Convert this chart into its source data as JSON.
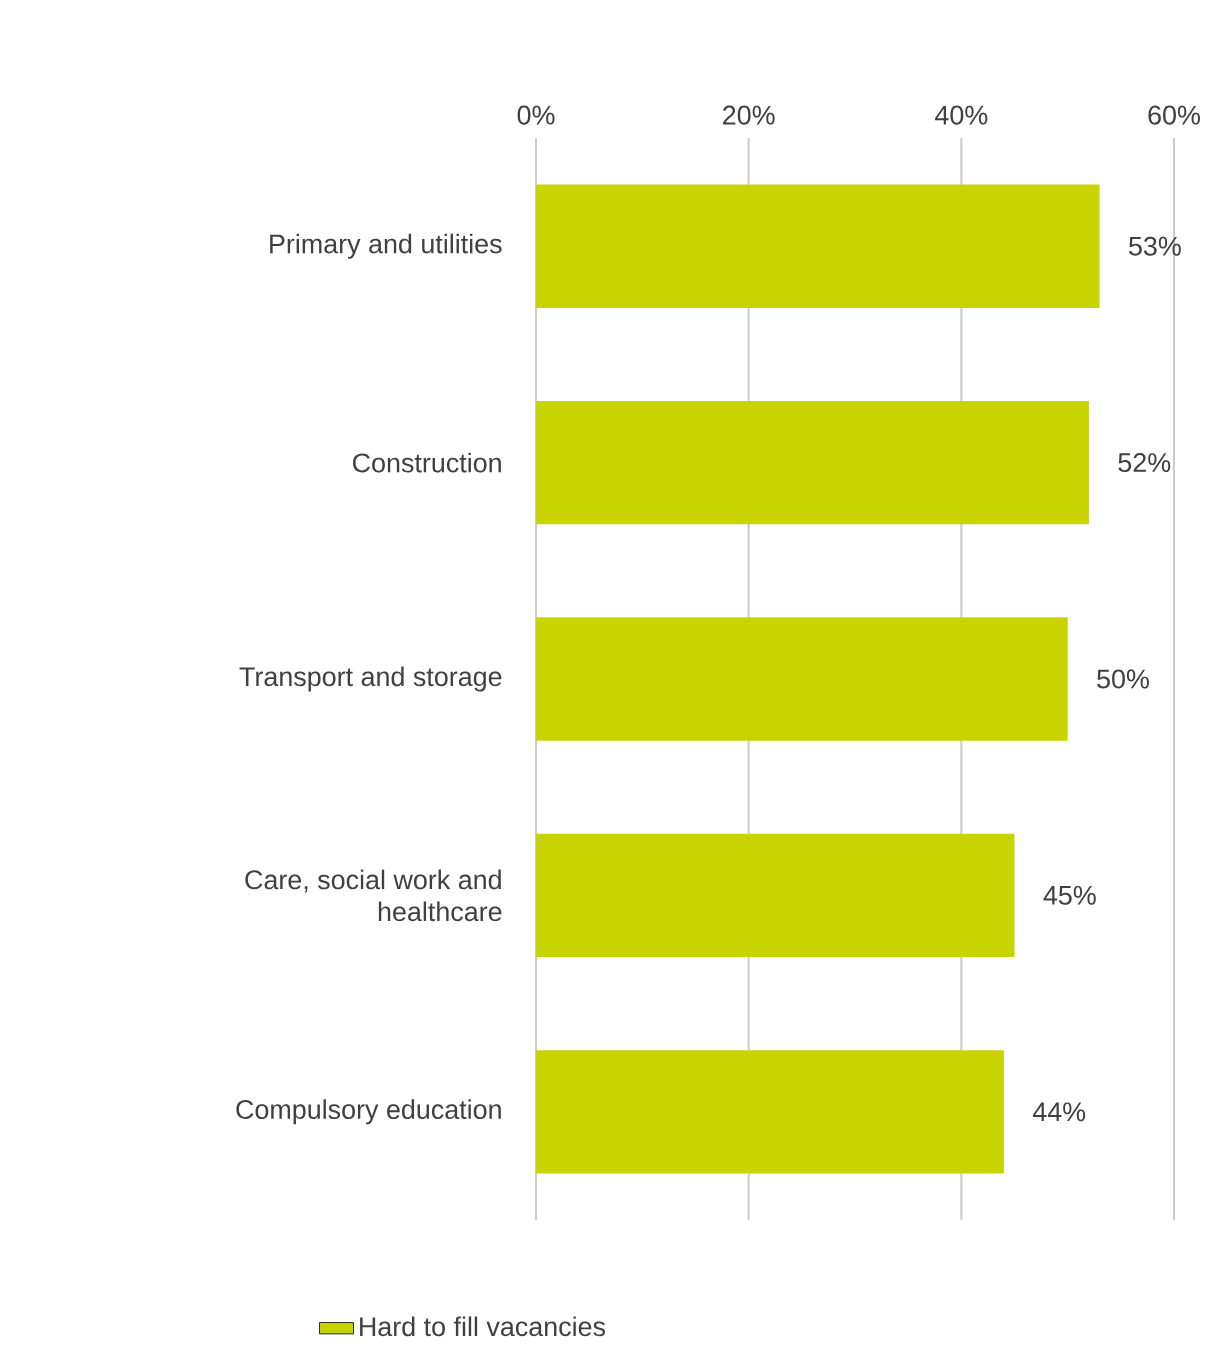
{
  "chart_data": {
    "type": "bar",
    "orientation": "horizontal",
    "categories": [
      "Primary and utilities",
      "Construction",
      "Transport and storage",
      "Care, social work and healthcare",
      "Compulsory education"
    ],
    "series": [
      {
        "name": "Hard to fill vacancies",
        "color": "#c8d400",
        "values": [
          53,
          52,
          50,
          45,
          44
        ],
        "value_labels": [
          "53%",
          "52%",
          "50%",
          "45%",
          "44%"
        ]
      }
    ],
    "xlim": [
      0,
      60
    ],
    "xticks": [
      {
        "value": 0,
        "label": "0%"
      },
      {
        "value": 20,
        "label": "20%"
      },
      {
        "value": 40,
        "label": "40%"
      },
      {
        "value": 60,
        "label": "60%"
      }
    ],
    "grid": "x",
    "legend": "bottom"
  }
}
